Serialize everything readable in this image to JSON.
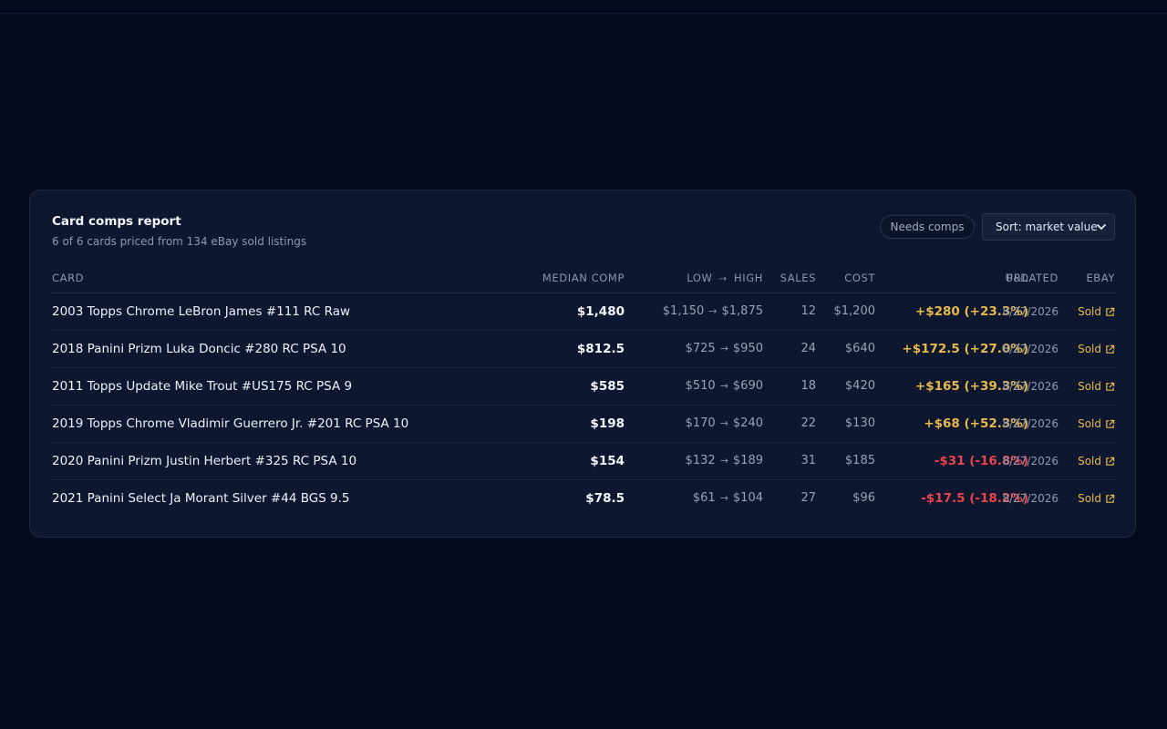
{
  "report": {
    "title": "Card comps report",
    "subtitle": "6 of 6 cards priced from 134 eBay sold listings",
    "needs_comps_label": "Needs comps",
    "sort_label": "Sort: market value"
  },
  "columns": {
    "card": "CARD",
    "median": "MEDIAN COMP",
    "low": "LOW",
    "arrow": "→",
    "high": "HIGH",
    "sales": "SALES",
    "cost": "COST",
    "pnl": "P&L",
    "updated": "UPDATED",
    "ebay": "EBAY"
  },
  "rows": [
    {
      "card": "2003 Topps Chrome LeBron James #111 RC Raw",
      "median": "$1,480",
      "low": "$1,150",
      "arrow": "→",
      "high": "$1,875",
      "sales": "12",
      "cost": "$1,200",
      "pnl": "+$280 (+23.3%)",
      "updated": "8/27/2026",
      "link": "Sold"
    },
    {
      "card": "2018 Panini Prizm Luka Doncic #280 RC PSA 10",
      "median": "$812.5",
      "low": "$725",
      "arrow": "→",
      "high": "$950",
      "sales": "24",
      "cost": "$640",
      "pnl": "+$172.5 (+27.0%)",
      "updated": "8/27/2026",
      "link": "Sold"
    },
    {
      "card": "2011 Topps Update Mike Trout #US175 RC PSA 9",
      "median": "$585",
      "low": "$510",
      "arrow": "→",
      "high": "$690",
      "sales": "18",
      "cost": "$420",
      "pnl": "+$165 (+39.3%)",
      "updated": "8/27/2026",
      "link": "Sold"
    },
    {
      "card": "2019 Topps Chrome Vladimir Guerrero Jr. #201 RC PSA 10",
      "median": "$198",
      "low": "$170",
      "arrow": "→",
      "high": "$240",
      "sales": "22",
      "cost": "$130",
      "pnl": "+$68 (+52.3%)",
      "updated": "8/27/2026",
      "link": "Sold"
    },
    {
      "card": "2020 Panini Prizm Justin Herbert #325 RC PSA 10",
      "median": "$154",
      "low": "$132",
      "arrow": "→",
      "high": "$189",
      "sales": "31",
      "cost": "$185",
      "pnl": "-$31 (-16.8%)",
      "updated": "8/27/2026",
      "link": "Sold"
    },
    {
      "card": "2021 Panini Select Ja Morant Silver #44 BGS 9.5",
      "median": "$78.5",
      "low": "$61",
      "arrow": "→",
      "high": "$104",
      "sales": "27",
      "cost": "$96",
      "pnl": "-$17.5 (-18.2%)",
      "updated": "8/27/2026",
      "link": "Sold"
    }
  ],
  "colors": {
    "positive": "#e9b949",
    "negative": "#e8444a",
    "link": "#e9b949"
  },
  "icons": {
    "ebay_link": "external-link-icon",
    "select": "chevron-down-icon"
  }
}
